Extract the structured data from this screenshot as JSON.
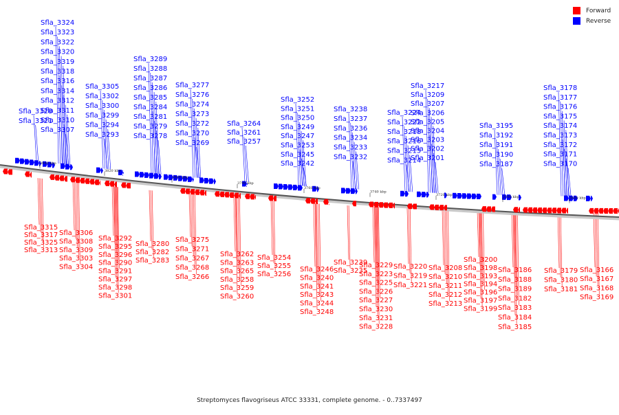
{
  "legend": {
    "items": [
      {
        "label": "Forward",
        "color": "#ff0000"
      },
      {
        "label": "Reverse",
        "color": "#0000ff"
      }
    ]
  },
  "caption": "Streptomyces flavogriseus ATCC 33331, complete genome. - 0..7337497",
  "scale_ticks": [
    "3840 kbp",
    "3820 kbp",
    "3800 kbp",
    "3780 kbp",
    "3760 kbp",
    "3740 kbp",
    "3720 kbp",
    "3700 kbp",
    "3680 kbp"
  ],
  "reverse_genes": [
    "Sfla_3324",
    "Sfla_3323",
    "Sfla_3322",
    "Sfla_3320",
    "Sfla_3319",
    "Sfla_3318",
    "Sfla_3316",
    "Sfla_3314",
    "Sfla_3312",
    "Sfla_3311",
    "Sfla_3310",
    "Sfla_3307",
    "Sfla_3328",
    "Sfla_3321",
    "Sfla_3305",
    "Sfla_3302",
    "Sfla_3300",
    "Sfla_3299",
    "Sfla_3294",
    "Sfla_3293",
    "Sfla_3289",
    "Sfla_3288",
    "Sfla_3287",
    "Sfla_3286",
    "Sfla_3285",
    "Sfla_3284",
    "Sfla_3281",
    "Sfla_3279",
    "Sfla_3278",
    "Sfla_3277",
    "Sfla_3276",
    "Sfla_3274",
    "Sfla_3273",
    "Sfla_3272",
    "Sfla_3270",
    "Sfla_3269",
    "Sfla_3264",
    "Sfla_3261",
    "Sfla_3257",
    "Sfla_3252",
    "Sfla_3251",
    "Sfla_3250",
    "Sfla_3249",
    "Sfla_3247",
    "Sfla_3253",
    "Sfla_3245",
    "Sfla_3242",
    "Sfla_3238",
    "Sfla_3237",
    "Sfla_3236",
    "Sfla_3234",
    "Sfla_3233",
    "Sfla_3232",
    "Sfla_3224",
    "Sfla_3222",
    "Sfla_3218",
    "Sfla_3216",
    "Sfla_3215",
    "Sfla_3214",
    "Sfla_3217",
    "Sfla_3209",
    "Sfla_3207",
    "Sfla_3206",
    "Sfla_3205",
    "Sfla_3204",
    "Sfla_3203",
    "Sfla_3202",
    "Sfla_3201",
    "Sfla_3195",
    "Sfla_3192",
    "Sfla_3191",
    "Sfla_3190",
    "Sfla_3187",
    "Sfla_3178",
    "Sfla_3177",
    "Sfla_3176",
    "Sfla_3175",
    "Sfla_3174",
    "Sfla_3173",
    "Sfla_3172",
    "Sfla_3171",
    "Sfla_3170"
  ],
  "forward_genes": [
    "Sfla_3315",
    "Sfla_3317",
    "Sfla_3325",
    "Sfla_3313",
    "Sfla_3306",
    "Sfla_3308",
    "Sfla_3309",
    "Sfla_3303",
    "Sfla_3304",
    "Sfla_3292",
    "Sfla_3295",
    "Sfla_3296",
    "Sfla_3290",
    "Sfla_3291",
    "Sfla_3297",
    "Sfla_3298",
    "Sfla_3301",
    "Sfla_3280",
    "Sfla_3282",
    "Sfla_3283",
    "Sfla_3275",
    "Sfla_3271",
    "Sfla_3267",
    "Sfla_3268",
    "Sfla_3266",
    "Sfla_3262",
    "Sfla_3263",
    "Sfla_3265",
    "Sfla_3258",
    "Sfla_3259",
    "Sfla_3260",
    "Sfla_3254",
    "Sfla_3255",
    "Sfla_3256",
    "Sfla_3246",
    "Sfla_3240",
    "Sfla_3241",
    "Sfla_3243",
    "Sfla_3244",
    "Sfla_3248",
    "Sfla_3239",
    "Sfla_3235",
    "Sfla_3229",
    "Sfla_3223",
    "Sfla_3225",
    "Sfla_3226",
    "Sfla_3227",
    "Sfla_3230",
    "Sfla_3231",
    "Sfla_3228",
    "Sfla_3220",
    "Sfla_3219",
    "Sfla_3221",
    "Sfla_3208",
    "Sfla_3210",
    "Sfla_3211",
    "Sfla_3212",
    "Sfla_3213",
    "Sfla_3200",
    "Sfla_3198",
    "Sfla_3193",
    "Sfla_3194",
    "Sfla_3196",
    "Sfla_3197",
    "Sfla_3199",
    "Sfla_3186",
    "Sfla_3188",
    "Sfla_3189",
    "Sfla_3182",
    "Sfla_3183",
    "Sfla_3184",
    "Sfla_3185",
    "Sfla_3179",
    "Sfla_3180",
    "Sfla_3181",
    "Sfla_3166",
    "Sfla_3167",
    "Sfla_3168",
    "Sfla_3169"
  ]
}
